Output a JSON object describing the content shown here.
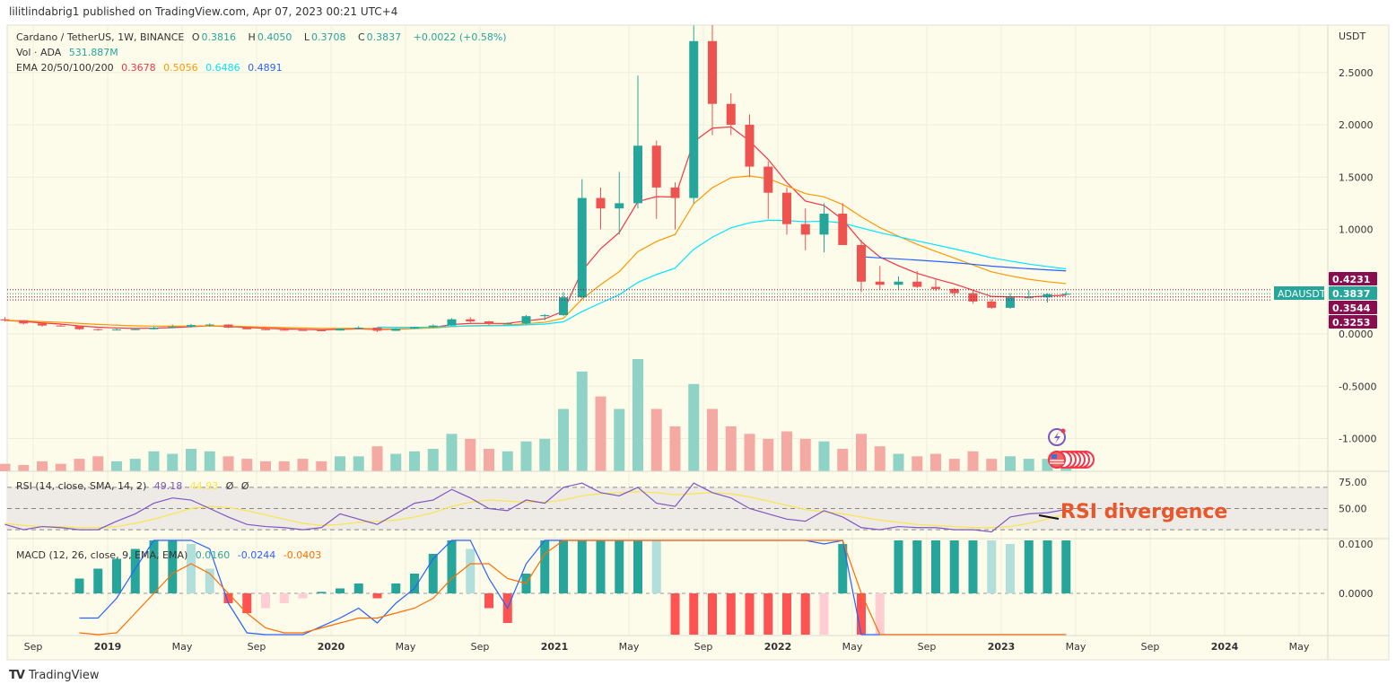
{
  "publisher": "lilitlindabrig1 published on TradingView.com, Apr 07, 2023 00:21 UTC+4",
  "brand": "TradingView",
  "legend": {
    "symbol": "Cardano / TetherUS, 1W, BINANCE",
    "o_label": "O",
    "o": "0.3816",
    "h_label": "H",
    "h": "0.4050",
    "l_label": "L",
    "l": "0.3708",
    "c_label": "C",
    "c": "0.3837",
    "change": "+0.0022 (+0.58%)",
    "vol_label": "Vol · ADA",
    "vol": "531.887M",
    "ema_label": "EMA 20/50/100/200",
    "ema20": "0.3678",
    "ema50": "0.5056",
    "ema100": "0.6486",
    "ema200": "0.4891",
    "rsi_label": "RSI (14, close, SMA, 14, 2)",
    "rsi": "49.18",
    "rsi_ma": "44.93",
    "rsi_extra1": "Ø",
    "rsi_extra2": "Ø",
    "macd_label": "MACD (12, 26, close, 9, EMA, EMA)",
    "macd": "0.0160",
    "macd_signal": "-0.0244",
    "macd_hist": "-0.0403"
  },
  "colors": {
    "background": "#fdfbea",
    "up": "#26a69a",
    "down": "#ef5350",
    "ema20": "#f23645",
    "ema50": "#ff9800",
    "ema100": "#00e5ff",
    "ema200": "#2962ff",
    "rsi": "#7e57c2",
    "rsi_ma": "#fbe44a",
    "macd": "#2962ff",
    "signal": "#ff6d00",
    "price_line": "#880e4f",
    "annotation": "#e8572b"
  },
  "annotation": "RSI divergence",
  "price_labels": [
    {
      "value": "0.4231",
      "kind": "level"
    },
    {
      "value": "0.3837",
      "kind": "last",
      "symbol": "ADAUSDT"
    },
    {
      "value": "0.3544",
      "kind": "level"
    },
    {
      "value": "0.3253",
      "kind": "level"
    }
  ],
  "icons": [
    "lightning-event-icon",
    "us-flag-events-icon"
  ],
  "chart_data": {
    "type": "candlestick",
    "currency": "USDT",
    "y_ticks": [
      "2.5000",
      "2.0000",
      "1.5000",
      "1.0000",
      "0.0000",
      "-0.5000",
      "-1.0000"
    ],
    "y_tick_values": [
      2.5,
      2.0,
      1.5,
      1.0,
      0.0,
      -0.5,
      -1.0
    ],
    "x_ticks": [
      {
        "label": "Sep",
        "date": "2018-09"
      },
      {
        "label": "2019",
        "date": "2019-01"
      },
      {
        "label": "May",
        "date": "2019-05"
      },
      {
        "label": "Sep",
        "date": "2019-09"
      },
      {
        "label": "2020",
        "date": "2020-01"
      },
      {
        "label": "May",
        "date": "2020-05"
      },
      {
        "label": "Sep",
        "date": "2020-09"
      },
      {
        "label": "2021",
        "date": "2021-01"
      },
      {
        "label": "May",
        "date": "2021-05"
      },
      {
        "label": "Sep",
        "date": "2021-09"
      },
      {
        "label": "2022",
        "date": "2022-01"
      },
      {
        "label": "May",
        "date": "2022-05"
      },
      {
        "label": "Sep",
        "date": "2022-09"
      },
      {
        "label": "2023",
        "date": "2023-01"
      },
      {
        "label": "May",
        "date": "2023-05"
      },
      {
        "label": "Sep",
        "date": "2023-09"
      },
      {
        "label": "2024",
        "date": "2024-01"
      },
      {
        "label": "May",
        "date": "2024-05"
      }
    ],
    "start": "2018-07",
    "candles_ohlc": [
      [
        0.14,
        0.16,
        0.12,
        0.13
      ],
      [
        0.13,
        0.13,
        0.09,
        0.1
      ],
      [
        0.1,
        0.11,
        0.07,
        0.08
      ],
      [
        0.08,
        0.09,
        0.07,
        0.075
      ],
      [
        0.075,
        0.08,
        0.04,
        0.045
      ],
      [
        0.045,
        0.05,
        0.03,
        0.042
      ],
      [
        0.042,
        0.05,
        0.038,
        0.042
      ],
      [
        0.042,
        0.05,
        0.038,
        0.045
      ],
      [
        0.045,
        0.07,
        0.044,
        0.06
      ],
      [
        0.06,
        0.09,
        0.055,
        0.07
      ],
      [
        0.07,
        0.095,
        0.06,
        0.085
      ],
      [
        0.085,
        0.1,
        0.07,
        0.09
      ],
      [
        0.09,
        0.092,
        0.055,
        0.06
      ],
      [
        0.06,
        0.065,
        0.043,
        0.045
      ],
      [
        0.045,
        0.05,
        0.036,
        0.04
      ],
      [
        0.04,
        0.045,
        0.033,
        0.038
      ],
      [
        0.038,
        0.045,
        0.032,
        0.035
      ],
      [
        0.035,
        0.038,
        0.031,
        0.033
      ],
      [
        0.033,
        0.055,
        0.032,
        0.05
      ],
      [
        0.05,
        0.075,
        0.048,
        0.06
      ],
      [
        0.06,
        0.062,
        0.018,
        0.03
      ],
      [
        0.03,
        0.055,
        0.028,
        0.05
      ],
      [
        0.05,
        0.07,
        0.045,
        0.065
      ],
      [
        0.065,
        0.09,
        0.06,
        0.08
      ],
      [
        0.08,
        0.15,
        0.078,
        0.14
      ],
      [
        0.14,
        0.16,
        0.11,
        0.12
      ],
      [
        0.12,
        0.125,
        0.08,
        0.1
      ],
      [
        0.1,
        0.11,
        0.09,
        0.1
      ],
      [
        0.1,
        0.18,
        0.09,
        0.17
      ],
      [
        0.17,
        0.19,
        0.13,
        0.18
      ],
      [
        0.18,
        0.4,
        0.17,
        0.35
      ],
      [
        0.35,
        1.48,
        0.34,
        1.3
      ],
      [
        1.3,
        1.4,
        1.0,
        1.2
      ],
      [
        1.2,
        1.55,
        0.95,
        1.25
      ],
      [
        1.25,
        2.47,
        1.2,
        1.8
      ],
      [
        1.8,
        1.85,
        1.1,
        1.4
      ],
      [
        1.4,
        1.45,
        1.0,
        1.3
      ],
      [
        1.3,
        2.95,
        1.25,
        2.8
      ],
      [
        2.8,
        3.1,
        1.9,
        2.2
      ],
      [
        2.2,
        2.3,
        1.9,
        2.0
      ],
      [
        2.0,
        2.1,
        1.5,
        1.6
      ],
      [
        1.6,
        1.65,
        1.1,
        1.35
      ],
      [
        1.35,
        1.4,
        0.95,
        1.05
      ],
      [
        1.05,
        1.2,
        0.8,
        0.95
      ],
      [
        0.95,
        1.25,
        0.78,
        1.15
      ],
      [
        1.15,
        1.25,
        0.85,
        0.85
      ],
      [
        0.85,
        0.9,
        0.4,
        0.5
      ],
      [
        0.5,
        0.65,
        0.42,
        0.47
      ],
      [
        0.47,
        0.55,
        0.42,
        0.5
      ],
      [
        0.5,
        0.6,
        0.44,
        0.45
      ],
      [
        0.45,
        0.52,
        0.41,
        0.43
      ],
      [
        0.43,
        0.44,
        0.36,
        0.39
      ],
      [
        0.39,
        0.42,
        0.29,
        0.31
      ],
      [
        0.31,
        0.33,
        0.24,
        0.25
      ],
      [
        0.25,
        0.39,
        0.24,
        0.35
      ],
      [
        0.35,
        0.42,
        0.34,
        0.35
      ],
      [
        0.35,
        0.39,
        0.3,
        0.38
      ],
      [
        0.3816,
        0.405,
        0.3708,
        0.3837
      ]
    ],
    "volume_millions": [
      300,
      250,
      400,
      300,
      500,
      600,
      400,
      500,
      800,
      700,
      900,
      800,
      600,
      500,
      400,
      400,
      500,
      400,
      600,
      600,
      1000,
      700,
      800,
      900,
      1500,
      1300,
      900,
      800,
      1200,
      1300,
      2500,
      4000,
      3000,
      2500,
      4500,
      2500,
      1800,
      3500,
      2500,
      1800,
      1500,
      1300,
      1600,
      1300,
      1200,
      900,
      1500,
      1000,
      700,
      600,
      700,
      500,
      800,
      500,
      600,
      500,
      500,
      531.887
    ],
    "ema_series": [
      {
        "name": "EMA 20",
        "period_weeks": 20,
        "start": "2018-07"
      },
      {
        "name": "EMA 50",
        "period_weeks": 50,
        "start": "2018-07"
      },
      {
        "name": "EMA 100",
        "period_weeks": 100,
        "start": "2020-03"
      },
      {
        "name": "EMA 200",
        "period_weeks": 200,
        "start": "2022-05"
      }
    ],
    "rsi": {
      "y_ticks": [
        "75.00",
        "50.00"
      ],
      "y_tick_values": [
        75,
        50
      ],
      "bands": [
        70,
        50,
        30
      ],
      "values": [
        35,
        30,
        33,
        32,
        30,
        30,
        38,
        45,
        55,
        60,
        58,
        50,
        42,
        35,
        33,
        32,
        30,
        32,
        45,
        40,
        35,
        45,
        55,
        58,
        68,
        60,
        50,
        48,
        58,
        55,
        70,
        75,
        65,
        62,
        70,
        55,
        52,
        75,
        65,
        60,
        50,
        45,
        40,
        38,
        48,
        42,
        32,
        30,
        33,
        32,
        32,
        30,
        30,
        28,
        42,
        45,
        46,
        49.18
      ],
      "ma": [
        36,
        34,
        33,
        33,
        32,
        32,
        33,
        36,
        40,
        45,
        50,
        52,
        51,
        48,
        44,
        40,
        36,
        34,
        35,
        37,
        38,
        39,
        42,
        46,
        52,
        56,
        58,
        57,
        56,
        56,
        58,
        62,
        64,
        65,
        66,
        65,
        63,
        64,
        65,
        64,
        61,
        57,
        53,
        49,
        47,
        45,
        42,
        39,
        37,
        35,
        34,
        33,
        32,
        32,
        33,
        36,
        40,
        44.93
      ]
    },
    "macd": {
      "y_ticks": [
        "0.0100",
        "0.0000"
      ],
      "y_tick_values": [
        0.01,
        0
      ],
      "histogram": [
        0,
        0,
        0,
        0,
        0.003,
        0.005,
        0.007,
        0.009,
        0.011,
        0.012,
        0.01,
        0.005,
        -0.002,
        -0.004,
        -0.003,
        -0.002,
        -0.001,
        0.0003,
        0.001,
        0.002,
        -0.001,
        0.002,
        0.004,
        0.008,
        0.012,
        0.009,
        -0.003,
        -0.006,
        0.004,
        0.012,
        0.02,
        0.03,
        0.03,
        0.03,
        0.03,
        0.02,
        -0.02,
        -0.02,
        -0.02,
        -0.03,
        -0.03,
        -0.03,
        -0.03,
        -0.03,
        -0.02,
        0.01,
        -0.015,
        -0.01,
        0.02,
        0.02,
        0.02,
        0.02,
        0.02,
        0.015,
        0.01,
        0.012,
        0.015,
        0.016
      ],
      "signal": [
        null,
        null,
        null,
        null,
        -0.008,
        -0.01,
        -0.008,
        -0.004,
        0,
        0.004,
        0.006,
        0.004,
        0,
        -0.004,
        -0.007,
        -0.008,
        -0.008,
        -0.007,
        -0.006,
        -0.005,
        -0.005,
        -0.004,
        -0.003,
        -0.001,
        0.003,
        0.006,
        0.006,
        0.003,
        0.002,
        0.008,
        0.03,
        0.06,
        0.08,
        0.1,
        0.12,
        0.13,
        0.13,
        0.14,
        0.15,
        0.14,
        0.12,
        0.1,
        0.07,
        0.05,
        0.03,
        0.02,
        0.0,
        -0.02,
        -0.03,
        -0.04,
        -0.045,
        -0.045,
        -0.045,
        -0.044,
        -0.04,
        -0.035,
        -0.03,
        -0.0244
      ]
    }
  }
}
